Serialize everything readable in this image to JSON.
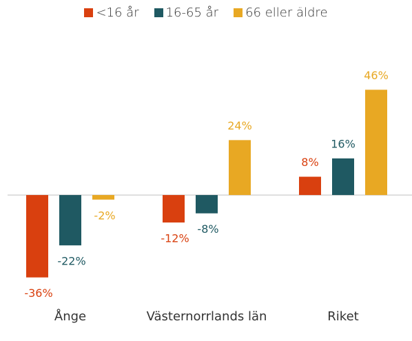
{
  "chart_data": {
    "type": "bar",
    "categories": [
      "Ånge",
      "Västernorrlands län",
      "Riket"
    ],
    "series": [
      {
        "name": "<16 år",
        "color": "#d9400f",
        "values": [
          -36,
          -12,
          8
        ],
        "value_labels": [
          "-36%",
          "-12%",
          "8%"
        ]
      },
      {
        "name": "16-65 år",
        "color": "#1f5962",
        "values": [
          -22,
          -8,
          16
        ],
        "value_labels": [
          "-22%",
          "-8%",
          "16%"
        ]
      },
      {
        "name": "66 eller äldre",
        "color": "#e8a823",
        "values": [
          -2,
          24,
          46
        ],
        "value_labels": [
          "-2%",
          "24%",
          "46%"
        ]
      }
    ],
    "ylim": [
      -40,
      50
    ],
    "legend": "top"
  }
}
